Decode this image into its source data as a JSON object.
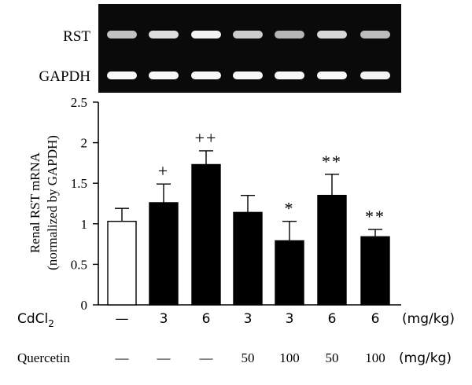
{
  "gel": {
    "rows": [
      {
        "label": "RST",
        "intensities": [
          0.55,
          0.75,
          0.9,
          0.62,
          0.45,
          0.7,
          0.5
        ]
      },
      {
        "label": "GAPDH",
        "intensities": [
          0.95,
          0.95,
          0.95,
          0.95,
          0.95,
          0.95,
          0.9
        ]
      }
    ]
  },
  "chart_data": {
    "type": "bar",
    "ylabel_line1": "Renal RST mRNA",
    "ylabel_line2": "(normalized by GAPDH)",
    "ylim": [
      0,
      2.5
    ],
    "yticks": [
      "0",
      "0.5",
      "1",
      "1.5",
      "2",
      "2.5"
    ],
    "ytick_values": [
      0,
      0.5,
      1,
      1.5,
      2,
      2.5
    ],
    "values": [
      1.03,
      1.26,
      1.73,
      1.14,
      0.79,
      1.35,
      0.84
    ],
    "errors": [
      0.16,
      0.23,
      0.17,
      0.21,
      0.24,
      0.26,
      0.09
    ],
    "annotations": [
      "",
      "+",
      "++",
      "",
      "*",
      "**",
      "**"
    ],
    "fills": [
      "#ffffff",
      "#000000",
      "#000000",
      "#000000",
      "#000000",
      "#000000",
      "#000000"
    ]
  },
  "conditions": {
    "cdcl2": {
      "label_main": "CdCl",
      "label_sub": "2",
      "values": [
        "—",
        "3",
        "6",
        "3",
        "3",
        "6",
        "6"
      ],
      "unit": "(mg/kg)"
    },
    "quercetin": {
      "label": "Quercetin",
      "values": [
        "—",
        "—",
        "—",
        "50",
        "100",
        "50",
        "100"
      ],
      "unit": "(mg/kg)"
    }
  }
}
